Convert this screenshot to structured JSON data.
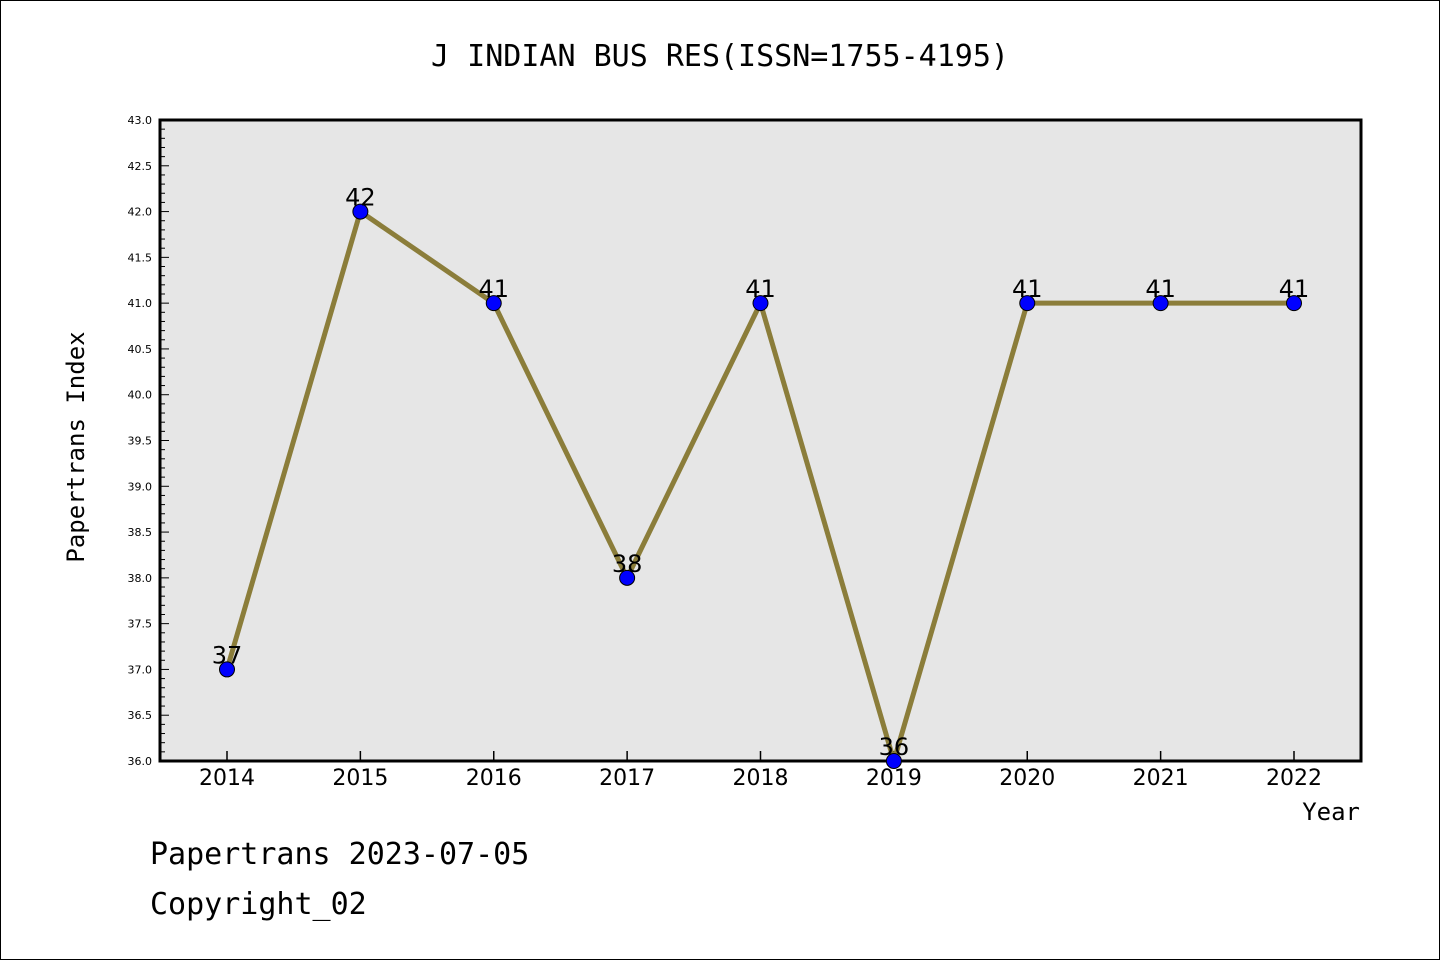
{
  "chart_data": {
    "type": "line",
    "title": "J INDIAN BUS RES(ISSN=1755-4195)",
    "xlabel": "Year",
    "ylabel": "Papertrans Index",
    "categories": [
      "2014",
      "2015",
      "2016",
      "2017",
      "2018",
      "2019",
      "2020",
      "2021",
      "2022"
    ],
    "series": [
      {
        "values": [
          37,
          42,
          41,
          38,
          41,
          36,
          41,
          41,
          41
        ],
        "data_labels": [
          "37",
          "42",
          "41",
          "38",
          "41",
          "36",
          "41",
          "41",
          "41"
        ]
      }
    ],
    "ylim": [
      36.0,
      43.0
    ],
    "yticks": [
      "36.0",
      "36.5",
      "37.0",
      "37.5",
      "38.0",
      "38.5",
      "39.0",
      "39.5",
      "40.0",
      "40.5",
      "41.0",
      "41.5",
      "42.0",
      "42.5",
      "43.0"
    ],
    "grid": false,
    "colors": {
      "line": "#8b7d3a",
      "marker": "#0000ff",
      "plot_background": "#e6e6e6"
    }
  },
  "footer": {
    "date_text": "Papertrans 2023-07-05",
    "copyright_text": "Copyright_02"
  }
}
